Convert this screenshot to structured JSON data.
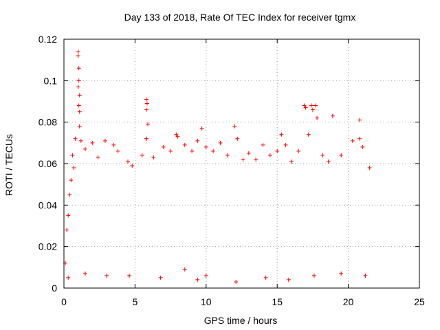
{
  "chart_data": {
    "type": "scatter",
    "title": "Day 133 of 2018, Rate Of TEC Index for receiver tgmx",
    "xlabel": "GPS time / hours",
    "ylabel": "ROTI / TECUs",
    "xlim": [
      0,
      25
    ],
    "ylim": [
      0,
      0.12
    ],
    "xticks": [
      0,
      5,
      10,
      15,
      20,
      25
    ],
    "yticks": [
      0,
      0.02,
      0.04,
      0.06,
      0.08,
      0.1,
      0.12
    ],
    "xtick_labels": [
      "0",
      "5",
      "10",
      "15",
      "20",
      "25"
    ],
    "ytick_labels": [
      "0",
      "0.02",
      "0.04",
      "0.06",
      "0.08",
      "0.1",
      "0.12"
    ],
    "grid": true,
    "marker": "plus",
    "color": "#ff0000",
    "series": [
      {
        "name": "ROTI",
        "points": [
          [
            0.1,
            0.012
          ],
          [
            0.2,
            0.028
          ],
          [
            0.3,
            0.035
          ],
          [
            0.4,
            0.045
          ],
          [
            0.5,
            0.052
          ],
          [
            0.6,
            0.064
          ],
          [
            0.7,
            0.058
          ],
          [
            0.8,
            0.072
          ],
          [
            1.0,
            0.114
          ],
          [
            1.0,
            0.112
          ],
          [
            1.05,
            0.106
          ],
          [
            1.05,
            0.1
          ],
          [
            1.0,
            0.097
          ],
          [
            1.1,
            0.093
          ],
          [
            1.05,
            0.088
          ],
          [
            1.1,
            0.085
          ],
          [
            1.1,
            0.078
          ],
          [
            1.2,
            0.071
          ],
          [
            1.5,
            0.067
          ],
          [
            2.0,
            0.07
          ],
          [
            2.4,
            0.063
          ],
          [
            2.9,
            0.071
          ],
          [
            3.5,
            0.069
          ],
          [
            3.8,
            0.066
          ],
          [
            4.5,
            0.061
          ],
          [
            4.8,
            0.059
          ],
          [
            5.5,
            0.064
          ],
          [
            5.8,
            0.091
          ],
          [
            5.85,
            0.089
          ],
          [
            5.8,
            0.086
          ],
          [
            5.9,
            0.079
          ],
          [
            5.8,
            0.072
          ],
          [
            5.8,
            0.072
          ],
          [
            6.3,
            0.063
          ],
          [
            7.0,
            0.068
          ],
          [
            7.5,
            0.066
          ],
          [
            7.9,
            0.074
          ],
          [
            8.0,
            0.073
          ],
          [
            8.5,
            0.069
          ],
          [
            9.0,
            0.066
          ],
          [
            9.4,
            0.071
          ],
          [
            9.7,
            0.077
          ],
          [
            10.0,
            0.068
          ],
          [
            10.5,
            0.066
          ],
          [
            11.0,
            0.07
          ],
          [
            11.5,
            0.064
          ],
          [
            12.0,
            0.078
          ],
          [
            12.2,
            0.072
          ],
          [
            12.6,
            0.062
          ],
          [
            13.0,
            0.065
          ],
          [
            13.5,
            0.062
          ],
          [
            14.0,
            0.069
          ],
          [
            14.5,
            0.064
          ],
          [
            15.0,
            0.066
          ],
          [
            15.3,
            0.074
          ],
          [
            15.6,
            0.069
          ],
          [
            16.0,
            0.061
          ],
          [
            16.5,
            0.066
          ],
          [
            16.9,
            0.088
          ],
          [
            17.0,
            0.087
          ],
          [
            17.2,
            0.074
          ],
          [
            17.4,
            0.088
          ],
          [
            17.5,
            0.086
          ],
          [
            17.7,
            0.088
          ],
          [
            17.8,
            0.082
          ],
          [
            18.2,
            0.064
          ],
          [
            18.6,
            0.061
          ],
          [
            18.9,
            0.083
          ],
          [
            19.5,
            0.064
          ],
          [
            20.3,
            0.071
          ],
          [
            20.8,
            0.072
          ],
          [
            20.8,
            0.081
          ],
          [
            21.0,
            0.068
          ],
          [
            21.5,
            0.058
          ],
          [
            0.3,
            0.005
          ],
          [
            1.5,
            0.007
          ],
          [
            3.0,
            0.006
          ],
          [
            4.6,
            0.006
          ],
          [
            6.8,
            0.005
          ],
          [
            9.4,
            0.004
          ],
          [
            10.0,
            0.006
          ],
          [
            12.1,
            0.003
          ],
          [
            14.2,
            0.005
          ],
          [
            15.8,
            0.004
          ],
          [
            17.6,
            0.006
          ],
          [
            19.5,
            0.007
          ],
          [
            21.2,
            0.006
          ],
          [
            8.5,
            0.009
          ]
        ]
      }
    ]
  }
}
